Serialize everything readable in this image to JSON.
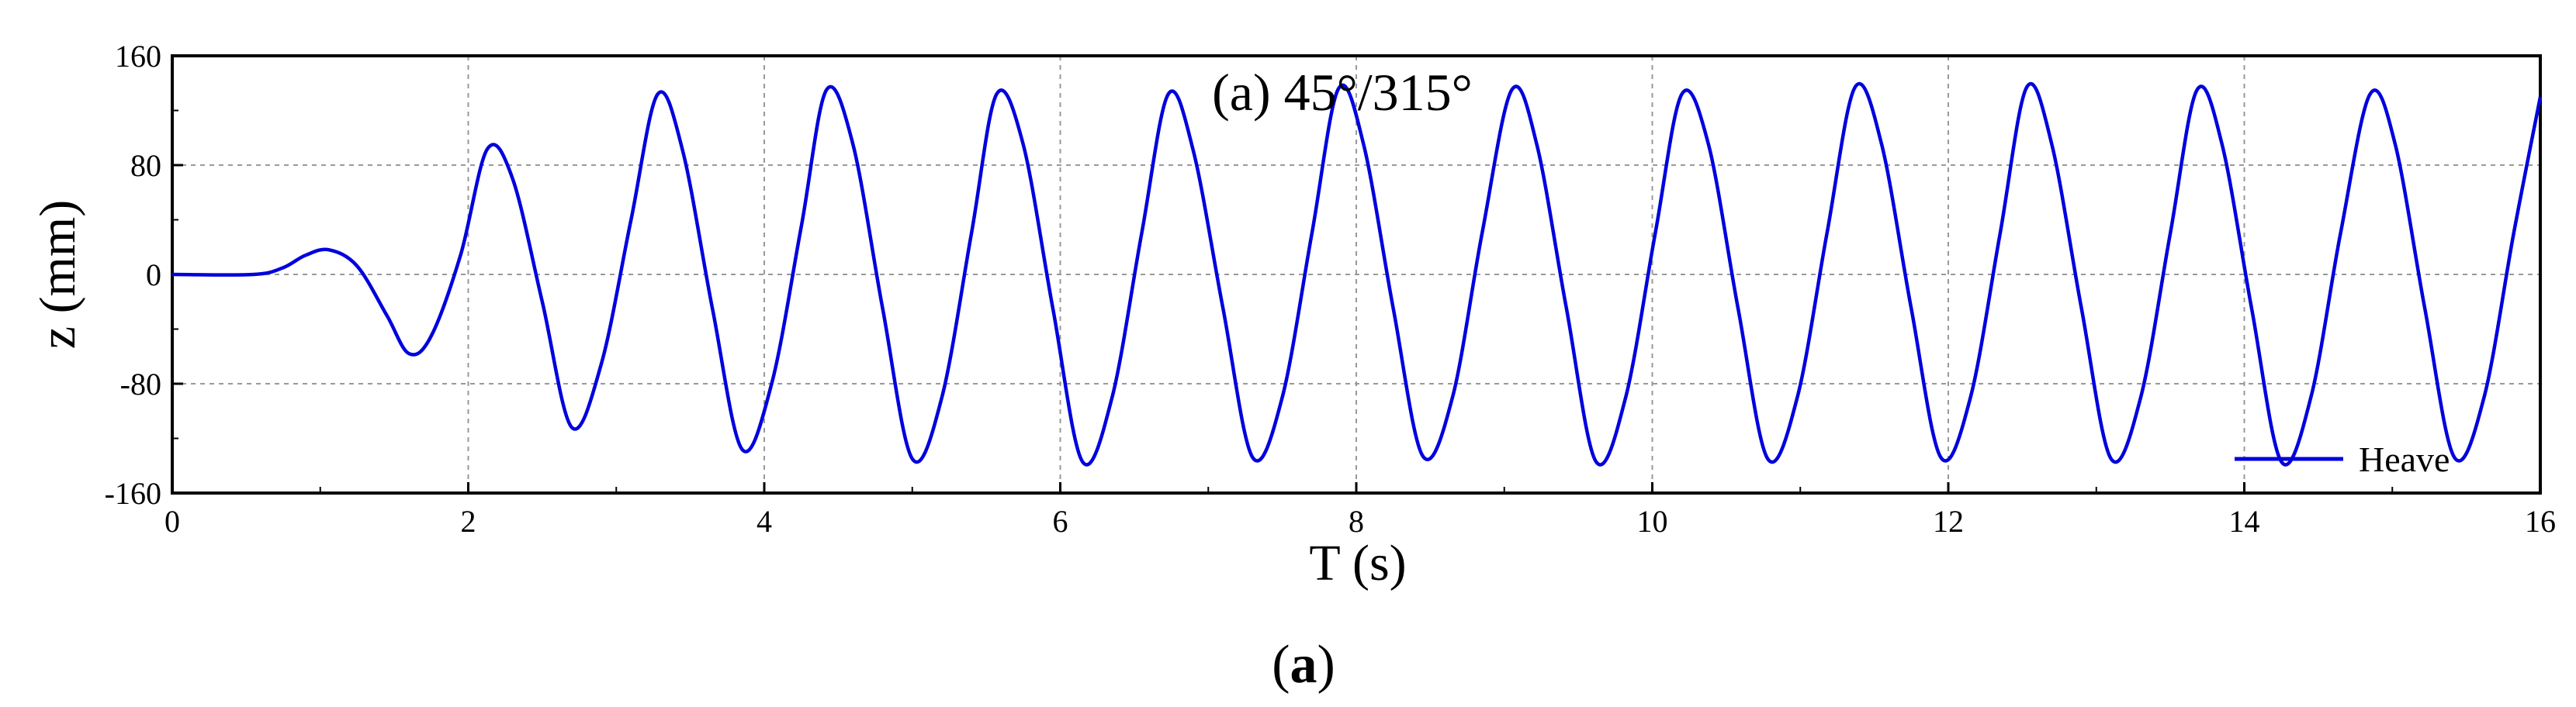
{
  "chart_data": {
    "type": "line",
    "title": "(a) 45°/315°",
    "xlabel": "T (s)",
    "ylabel": "z (mm)",
    "xlim": [
      0,
      16
    ],
    "ylim": [
      -160,
      160
    ],
    "x_ticks": [
      0,
      2,
      4,
      6,
      8,
      10,
      12,
      14,
      16
    ],
    "y_ticks": [
      -160,
      -80,
      0,
      80,
      160
    ],
    "grid": true,
    "legend_position": "bottom-right",
    "series": [
      {
        "name": "Heave",
        "color": "#0000dd",
        "x": [
          0,
          0.55,
          0.75,
          0.9,
          1.06,
          1.25,
          1.45,
          1.6,
          1.75,
          1.95,
          2.13,
          2.3,
          2.5,
          2.7,
          2.9,
          3.1,
          3.28,
          3.45,
          3.65,
          3.85,
          4.05,
          4.25,
          4.42,
          4.6,
          4.8,
          5.0,
          5.2,
          5.4,
          5.57,
          5.75,
          5.95,
          6.15,
          6.35,
          6.55,
          6.73,
          6.9,
          7.1,
          7.3,
          7.5,
          7.7,
          7.88,
          8.05,
          8.25,
          8.45,
          8.65,
          8.85,
          9.05,
          9.22,
          9.42,
          9.62,
          9.82,
          10.02,
          10.2,
          10.38,
          10.58,
          10.78,
          10.98,
          11.18,
          11.37,
          11.55,
          11.75,
          11.95,
          12.15,
          12.35,
          12.53,
          12.7,
          12.9,
          13.1,
          13.3,
          13.5,
          13.68,
          13.85,
          14.05,
          14.25,
          14.45,
          14.65,
          14.85,
          15.02,
          15.22,
          15.42,
          15.62,
          15.82,
          16.0
        ],
        "y": [
          0,
          0,
          5,
          14,
          18,
          6,
          -30,
          -58,
          -45,
          15,
          92,
          70,
          -20,
          -112,
          -65,
          40,
          132,
          90,
          -25,
          -128,
          -80,
          35,
          135,
          95,
          -25,
          -135,
          -90,
          30,
          132,
          95,
          -25,
          -137,
          -90,
          30,
          132,
          90,
          -25,
          -134,
          -90,
          30,
          136,
          95,
          -25,
          -133,
          -90,
          30,
          135,
          95,
          -25,
          -137,
          -90,
          30,
          132,
          95,
          -25,
          -135,
          -90,
          30,
          137,
          95,
          -25,
          -134,
          -90,
          30,
          137,
          95,
          -25,
          -135,
          -90,
          30,
          135,
          95,
          -25,
          -137,
          -90,
          30,
          132,
          95,
          -25,
          -134,
          -90,
          30,
          130
        ]
      }
    ]
  },
  "caption": {
    "paren_open": "(",
    "letter": "a",
    "paren_close": ")"
  }
}
